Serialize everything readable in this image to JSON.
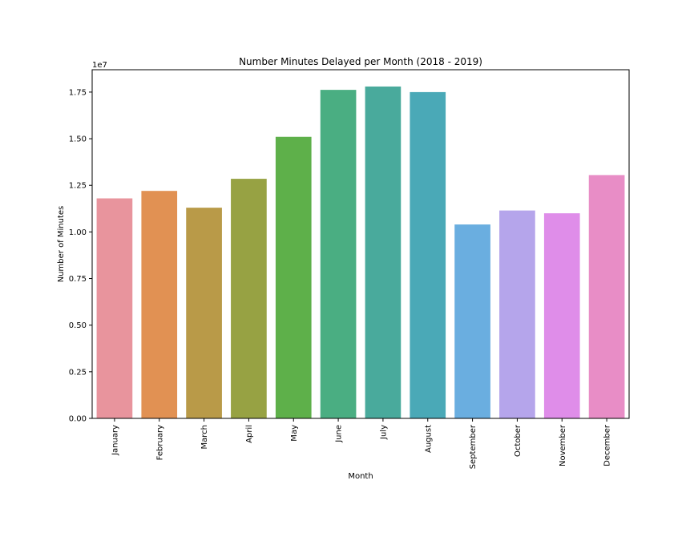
{
  "chart_data": {
    "type": "bar",
    "title": "Number Minutes Delayed per Month (2018 - 2019)",
    "xlabel": "Month",
    "ylabel": "Number of Minutes",
    "y_offset_label": "1e7",
    "ylim": [
      0,
      18700000
    ],
    "y_ticks": [
      0,
      2500000,
      5000000,
      7500000,
      10000000,
      12500000,
      15000000,
      17500000
    ],
    "y_tick_labels": [
      "0.00",
      "0.25",
      "0.50",
      "0.75",
      "1.00",
      "1.25",
      "1.50",
      "1.75"
    ],
    "categories": [
      "January",
      "February",
      "March",
      "April",
      "May",
      "June",
      "July",
      "August",
      "September",
      "October",
      "November",
      "December"
    ],
    "values": [
      11800000,
      12200000,
      11300000,
      12850000,
      15100000,
      17620000,
      17800000,
      17500000,
      10400000,
      11150000,
      11000000,
      13050000
    ],
    "colors": [
      "#e8949d",
      "#e19153",
      "#b99a48",
      "#97a243",
      "#5eb04a",
      "#4aae82",
      "#49aa9c",
      "#4aa9b7",
      "#6aaee0",
      "#b5a5eb",
      "#df8de9",
      "#e88dc6"
    ],
    "grid": false,
    "legend": "none"
  }
}
